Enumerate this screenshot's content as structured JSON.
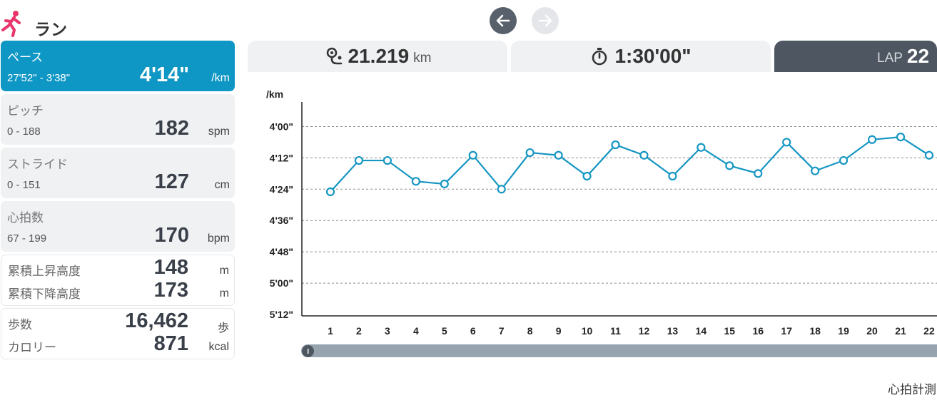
{
  "app": {
    "title": "ラン",
    "icon": "running-person-icon",
    "accent": "#e8366b"
  },
  "nav": {
    "prev_icon": "arrow-left-icon",
    "next_icon": "arrow-right-icon"
  },
  "metrics": [
    {
      "label": "ペース",
      "range": "27'52\" - 3'38\"",
      "value": "4'14\"",
      "unit": "/km",
      "active": true
    },
    {
      "label": "ピッチ",
      "range": "0 - 188",
      "value": "182",
      "unit": "spm"
    },
    {
      "label": "ストライド",
      "range": "0 - 151",
      "value": "127",
      "unit": "cm"
    },
    {
      "label": "心拍数",
      "range": "67 - 199",
      "value": "170",
      "unit": "bpm"
    }
  ],
  "elevation": {
    "ascent_label": "累積上昇高度",
    "ascent_value": "148",
    "ascent_unit": "m",
    "descent_label": "累積下降高度",
    "descent_value": "173",
    "descent_unit": "m"
  },
  "steps": {
    "steps_label": "歩数",
    "steps_value": "16,462",
    "steps_unit": "歩",
    "calories_label": "カロリー",
    "calories_value": "871",
    "calories_unit": "kcal"
  },
  "tabs": {
    "distance": {
      "icon": "route-pin-icon",
      "value": "21.219",
      "unit": "km"
    },
    "time": {
      "icon": "stopwatch-icon",
      "value": "1:30'00\""
    },
    "lap": {
      "label": "LAP",
      "value": "22"
    }
  },
  "chart_data": {
    "type": "line",
    "ylabel": "/km",
    "y_ticks": [
      "4'00\"",
      "4'12\"",
      "4'24\"",
      "4'36\"",
      "4'48\"",
      "5'00\"",
      "5'12\""
    ],
    "y_tick_seconds": [
      240,
      252,
      264,
      276,
      288,
      300,
      312
    ],
    "ylim": [
      234,
      312
    ],
    "y_inverted": true,
    "categories": [
      "1",
      "2",
      "3",
      "4",
      "5",
      "6",
      "7",
      "8",
      "9",
      "10",
      "11",
      "12",
      "13",
      "14",
      "15",
      "16",
      "17",
      "18",
      "19",
      "20",
      "21",
      "22"
    ],
    "values": [
      265,
      253,
      253,
      261,
      262,
      251,
      264,
      250,
      251,
      259,
      247,
      251,
      259,
      248,
      255,
      258,
      246,
      257,
      253,
      245,
      244,
      251
    ],
    "grid": true,
    "line_color": "#1596c2"
  },
  "footer": {
    "text": "心拍計測"
  }
}
